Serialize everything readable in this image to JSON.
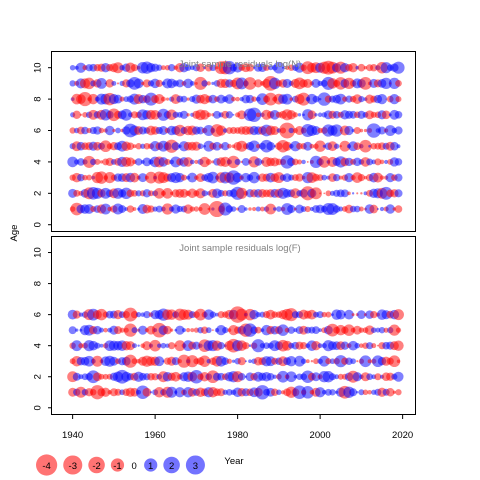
{
  "chart_data": [
    {
      "type": "scatter",
      "title": "Joint sample residuals log(N)",
      "ylabel": "Age",
      "xlabel": "",
      "xlim": [
        1935,
        2023
      ],
      "ylim": [
        -0.4,
        11
      ],
      "yticks": [
        0,
        2,
        4,
        6,
        8,
        10
      ],
      "ages": [
        1,
        2,
        3,
        4,
        5,
        6,
        7,
        8,
        9,
        10
      ],
      "years": {
        "start": 1940,
        "end": 2019
      },
      "encoding": "bubble area ~ |residual|; red = negative, blue = positive",
      "residual_range": [
        -4,
        3
      ]
    },
    {
      "type": "scatter",
      "title": "Joint sample residuals log(F)",
      "ylabel": "",
      "xlabel": "Year",
      "xlim": [
        1935,
        2023
      ],
      "ylim": [
        -0.4,
        11
      ],
      "yticks": [
        0,
        2,
        4,
        6,
        8,
        10
      ],
      "xticks": [
        1940,
        1960,
        1980,
        2000,
        2020
      ],
      "ages": [
        1,
        2,
        3,
        4,
        5,
        6
      ],
      "years": {
        "start": 1940,
        "end": 2019
      },
      "encoding": "bubble area ~ |residual|; red = negative, blue = positive",
      "residual_range": [
        -4,
        3
      ]
    }
  ],
  "shared_ylabel": "Age",
  "shared_xlabel": "Year",
  "legend": {
    "items": [
      {
        "label": "-4",
        "value": -4
      },
      {
        "label": "-3",
        "value": -3
      },
      {
        "label": "-2",
        "value": -2
      },
      {
        "label": "-1",
        "value": -1
      },
      {
        "label": "0",
        "value": 0
      },
      {
        "label": "1",
        "value": 1
      },
      {
        "label": "2",
        "value": 2
      },
      {
        "label": "3",
        "value": 3
      }
    ]
  },
  "colors": {
    "negative": "#ff0000",
    "positive": "#0000ff",
    "title_gray": "#808080",
    "axis": "#000000"
  }
}
